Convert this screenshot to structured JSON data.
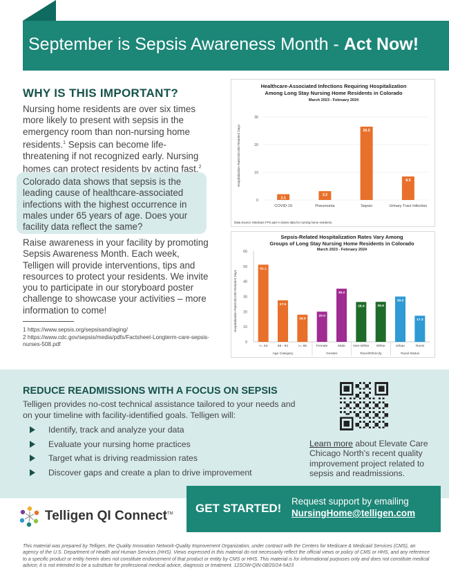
{
  "header": {
    "title_lead": "September is Sepsis Awareness Month - ",
    "title_emph": "Act Now!"
  },
  "why": {
    "heading": "WHY IS THIS IMPORTANT?",
    "p1_text": "Nursing home residents are over six times more likely to present with sepsis in the emergency room than non-nursing home residents.",
    "p1_sup": "1",
    "p1_text2": " Sepsis can become life-threatening if not recognized early. Nursing homes can protect residents by acting fast.",
    "p1_sup2": "2",
    "highlight": "Colorado data shows that sepsis is the leading cause of healthcare-associated infections with the highest occurrence in males under 65 years of age. Does your facility data reflect the same?",
    "p3": "Raise awareness in your facility by promoting Sepsis Awareness Month. Each week, Telligen will provide interventions, tips and resources to protect your residents. We invite you to participate in our storyboard poster challenge to showcase your activities – more information to come!",
    "footnote1": "1  https://www.sepsis.org/sepsisand/aging/",
    "footnote2": "2  https://www.cdc.gov/sepsis/media/pdfs/Factsheet-Longterm-care-sepsis-nurses-508.pdf"
  },
  "chart_data": [
    {
      "type": "bar",
      "title": "Healthcare-Associated Infections Requiring Hospitalization Among Long Stay Nursing Home Residents in Colorado",
      "title_line1": "Healthcare-Associated Infections Requiring Hospitalization",
      "title_line2": "Among Long Stay Nursing Home Residents in Colorado",
      "subtitle": "March 2023 - February 2024",
      "ylabel": "Hospitalization Rate/100,000 Resident Days",
      "ylim": [
        0,
        30
      ],
      "yticks": [
        0,
        10,
        20,
        30
      ],
      "grid": true,
      "categories": [
        "COVID-19",
        "Pneumonia",
        "Sepsis",
        "Urinary Tract Infection"
      ],
      "values": [
        2.1,
        3.2,
        26.5,
        8.5
      ],
      "labels": [
        "2.1",
        "3.2",
        "26.5",
        "8.5"
      ],
      "colors": [
        "#e8702a",
        "#e8702a",
        "#e8702a",
        "#e8702a"
      ],
      "source": "Data Source: Medicare FFS part-A claims data for nursing home residents."
    },
    {
      "type": "bar",
      "title": "Sepsis-Related Hospitalization Rates Vary Among Groups of Long Stay Nursing Home Residents in Colorado",
      "title_line1": "Sepsis-Related Hospitalization Rates Vary Among",
      "title_line2": "Groups of Long Stay Nursing Home Residents in Colorado",
      "subtitle": "March 2023 - February 2024",
      "ylabel": "Hospitalization Rate/100,000 Resident Days",
      "ylim": [
        0,
        60
      ],
      "yticks": [
        0,
        10,
        20,
        30,
        40,
        50,
        60
      ],
      "grid": false,
      "categories": [
        "<= 64",
        "65 - 84",
        ">= 85",
        "Female",
        "Male",
        "Non-White",
        "White",
        "Urban",
        "Rural"
      ],
      "values": [
        51.1,
        27.5,
        18.0,
        20.0,
        35.2,
        26.4,
        26.5,
        30.0,
        17.3
      ],
      "labels": [
        "51.1",
        "27.5",
        "18.0",
        "20.0",
        "35.2",
        "26.4",
        "26.5",
        "30.0",
        "17.3"
      ],
      "colors": [
        "#e8702a",
        "#e8702a",
        "#e8702a",
        "#a02b93",
        "#a02b93",
        "#1f6b2a",
        "#1f6b2a",
        "#2f9ad4",
        "#2f9ad4"
      ],
      "groups": [
        {
          "label": "Age Category",
          "count": 3
        },
        {
          "label": "Gender",
          "count": 2
        },
        {
          "label": "Race/Ethnicity",
          "count": 2
        },
        {
          "label": "Rural Status",
          "count": 2
        }
      ]
    }
  ],
  "reduce": {
    "heading": "REDUCE READMISSIONS WITH A FOCUS ON SEPSIS",
    "intro": "Telligen provides no-cost technical assistance tailored to your needs and on your timeline with facility-identified goals. Telligen will:",
    "bullets": [
      "Identify, track and analyze your data",
      "Evaluate your nursing home practices",
      "Target what is driving readmission rates",
      "Discover gaps and create a plan to drive improvement"
    ],
    "learn_link": "Learn more",
    "learn_rest": " about Elevate Care Chicago North's recent quality improvement project related to sepsis and readmissions."
  },
  "footer": {
    "logo_text": "Telligen QI Connect",
    "logo_tm": "TM",
    "get_started": "GET STARTED!",
    "request": "Request support by emailing",
    "email": "NursingHome@telligen.com",
    "colors": {
      "primary": "#1c8677",
      "dark": "#16524a",
      "orange": "#e8702a"
    }
  },
  "disclaimer": "This material was prepared by Telligen, the Quality Innovation Network-Quality Improvement Organization, under contract with the Centers for Medicare & Medicaid Services (CMS), an agency of the U.S. Department of Health and Human Services (HHS). Views expressed in this material do not necessarily reflect the official views or policy of CMS or HHS, and any reference to a specific product or entity herein does not constitute endorsement of that product or entity by CMS or HHS. This material is for informational purposes only and does not constitute medical advice; it is not intended to be a substitute for professional medical advice, diagnosis or treatment. 12SOW-QIN-08/20/24-5423"
}
